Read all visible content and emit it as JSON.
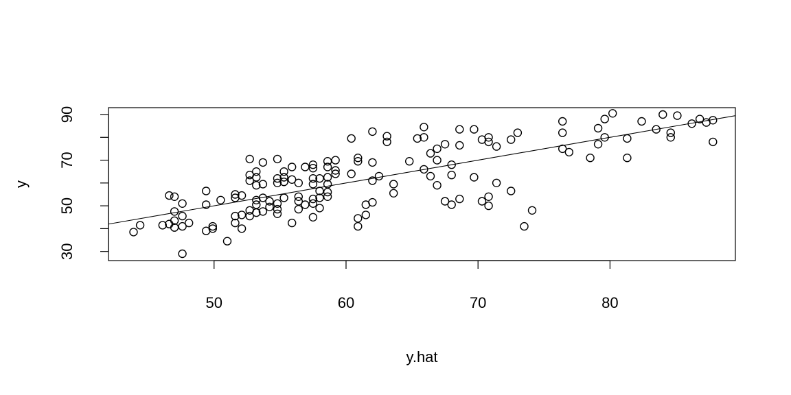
{
  "chart_data": {
    "type": "scatter",
    "title": "",
    "xlabel": "y.hat",
    "ylabel": "y",
    "xlim": [
      42,
      89.5
    ],
    "ylim": [
      26,
      93
    ],
    "x_ticks": [
      50,
      60,
      70,
      80
    ],
    "y_ticks": [
      30,
      50,
      70,
      90
    ],
    "grid": false,
    "reference_line": {
      "intercept": 0,
      "slope": 1
    },
    "series": [
      {
        "points": [
          [
            43.9,
            38.5
          ],
          [
            44.4,
            41.5
          ],
          [
            46.1,
            41.5
          ],
          [
            46.6,
            54.5
          ],
          [
            46.6,
            42.0
          ],
          [
            47.0,
            54.0
          ],
          [
            47.0,
            47.5
          ],
          [
            47.0,
            43.5
          ],
          [
            47.0,
            40.5
          ],
          [
            47.6,
            51.0
          ],
          [
            47.6,
            45.5
          ],
          [
            47.6,
            41.0
          ],
          [
            47.6,
            29.0
          ],
          [
            48.1,
            42.5
          ],
          [
            49.4,
            56.5
          ],
          [
            49.4,
            50.5
          ],
          [
            49.4,
            39.0
          ],
          [
            49.9,
            41.0
          ],
          [
            49.9,
            40.0
          ],
          [
            50.5,
            52.5
          ],
          [
            51.0,
            34.5
          ],
          [
            51.6,
            55.0
          ],
          [
            51.6,
            53.5
          ],
          [
            51.6,
            45.5
          ],
          [
            51.6,
            42.5
          ],
          [
            52.1,
            54.5
          ],
          [
            52.1,
            46.0
          ],
          [
            52.1,
            40.0
          ],
          [
            52.7,
            70.5
          ],
          [
            52.7,
            63.5
          ],
          [
            52.7,
            61.0
          ],
          [
            52.7,
            48.0
          ],
          [
            52.7,
            45.5
          ],
          [
            53.2,
            65.0
          ],
          [
            53.2,
            62.5
          ],
          [
            53.2,
            59.0
          ],
          [
            53.2,
            52.5
          ],
          [
            53.2,
            50.5
          ],
          [
            53.2,
            47.0
          ],
          [
            53.7,
            69.0
          ],
          [
            53.7,
            59.5
          ],
          [
            53.7,
            53.5
          ],
          [
            53.7,
            47.5
          ],
          [
            54.2,
            52.0
          ],
          [
            54.2,
            49.5
          ],
          [
            54.8,
            70.5
          ],
          [
            54.8,
            62.0
          ],
          [
            54.8,
            60.0
          ],
          [
            54.8,
            51.0
          ],
          [
            54.8,
            48.5
          ],
          [
            54.8,
            46.5
          ],
          [
            55.3,
            65.0
          ],
          [
            55.3,
            62.5
          ],
          [
            55.3,
            60.5
          ],
          [
            55.3,
            53.5
          ],
          [
            55.9,
            67.0
          ],
          [
            55.9,
            61.5
          ],
          [
            55.9,
            42.5
          ],
          [
            56.4,
            60.0
          ],
          [
            56.4,
            54.0
          ],
          [
            56.4,
            52.0
          ],
          [
            56.4,
            48.5
          ],
          [
            56.9,
            67.0
          ],
          [
            56.9,
            50.5
          ],
          [
            57.5,
            68.0
          ],
          [
            57.5,
            66.5
          ],
          [
            57.5,
            62.0
          ],
          [
            57.5,
            59.5
          ],
          [
            57.5,
            53.0
          ],
          [
            57.5,
            51.0
          ],
          [
            57.5,
            45.0
          ],
          [
            58.0,
            62.0
          ],
          [
            58.0,
            56.5
          ],
          [
            58.0,
            53.5
          ],
          [
            58.0,
            49.0
          ],
          [
            58.6,
            69.5
          ],
          [
            58.6,
            67.0
          ],
          [
            58.6,
            62.5
          ],
          [
            58.6,
            59.5
          ],
          [
            58.6,
            56.0
          ],
          [
            58.6,
            54.0
          ],
          [
            59.2,
            70.0
          ],
          [
            59.2,
            65.5
          ],
          [
            59.2,
            64.0
          ],
          [
            60.4,
            79.5
          ],
          [
            60.4,
            64.0
          ],
          [
            60.9,
            71.0
          ],
          [
            60.9,
            69.5
          ],
          [
            60.9,
            44.5
          ],
          [
            60.9,
            41.0
          ],
          [
            61.5,
            50.5
          ],
          [
            61.5,
            46.0
          ],
          [
            62.0,
            82.5
          ],
          [
            62.0,
            69.0
          ],
          [
            62.0,
            61.0
          ],
          [
            62.0,
            51.5
          ],
          [
            62.5,
            63.0
          ],
          [
            63.1,
            80.5
          ],
          [
            63.1,
            78.0
          ],
          [
            63.6,
            59.5
          ],
          [
            63.6,
            55.5
          ],
          [
            64.8,
            69.5
          ],
          [
            65.4,
            79.5
          ],
          [
            65.9,
            84.5
          ],
          [
            65.9,
            80.0
          ],
          [
            65.9,
            66.0
          ],
          [
            66.4,
            73.0
          ],
          [
            66.4,
            63.0
          ],
          [
            66.9,
            75.0
          ],
          [
            66.9,
            70.0
          ],
          [
            66.9,
            59.0
          ],
          [
            67.5,
            77.0
          ],
          [
            67.5,
            52.0
          ],
          [
            68.0,
            68.0
          ],
          [
            68.0,
            63.5
          ],
          [
            68.0,
            50.5
          ],
          [
            68.6,
            83.5
          ],
          [
            68.6,
            76.5
          ],
          [
            68.6,
            53.0
          ],
          [
            69.7,
            83.5
          ],
          [
            69.7,
            62.5
          ],
          [
            70.3,
            79.0
          ],
          [
            70.3,
            52.0
          ],
          [
            70.8,
            80.0
          ],
          [
            70.8,
            78.0
          ],
          [
            70.8,
            54.0
          ],
          [
            70.8,
            50.0
          ],
          [
            71.4,
            76.0
          ],
          [
            71.4,
            60.0
          ],
          [
            72.5,
            79.0
          ],
          [
            72.5,
            56.5
          ],
          [
            73.0,
            82.0
          ],
          [
            73.5,
            41.0
          ],
          [
            74.1,
            48.0
          ],
          [
            76.4,
            87.0
          ],
          [
            76.4,
            82.0
          ],
          [
            76.4,
            75.0
          ],
          [
            76.9,
            73.5
          ],
          [
            78.5,
            71.0
          ],
          [
            79.1,
            84.0
          ],
          [
            79.1,
            77.0
          ],
          [
            79.6,
            88.0
          ],
          [
            79.6,
            80.0
          ],
          [
            80.2,
            90.5
          ],
          [
            81.3,
            79.5
          ],
          [
            81.3,
            71.0
          ],
          [
            82.4,
            87.0
          ],
          [
            83.5,
            83.5
          ],
          [
            84.0,
            90.0
          ],
          [
            84.6,
            82.0
          ],
          [
            84.6,
            80.0
          ],
          [
            85.1,
            89.5
          ],
          [
            86.2,
            86.0
          ],
          [
            86.8,
            88.0
          ],
          [
            87.3,
            86.5
          ],
          [
            87.8,
            87.5
          ],
          [
            87.8,
            78.0
          ]
        ]
      }
    ]
  }
}
